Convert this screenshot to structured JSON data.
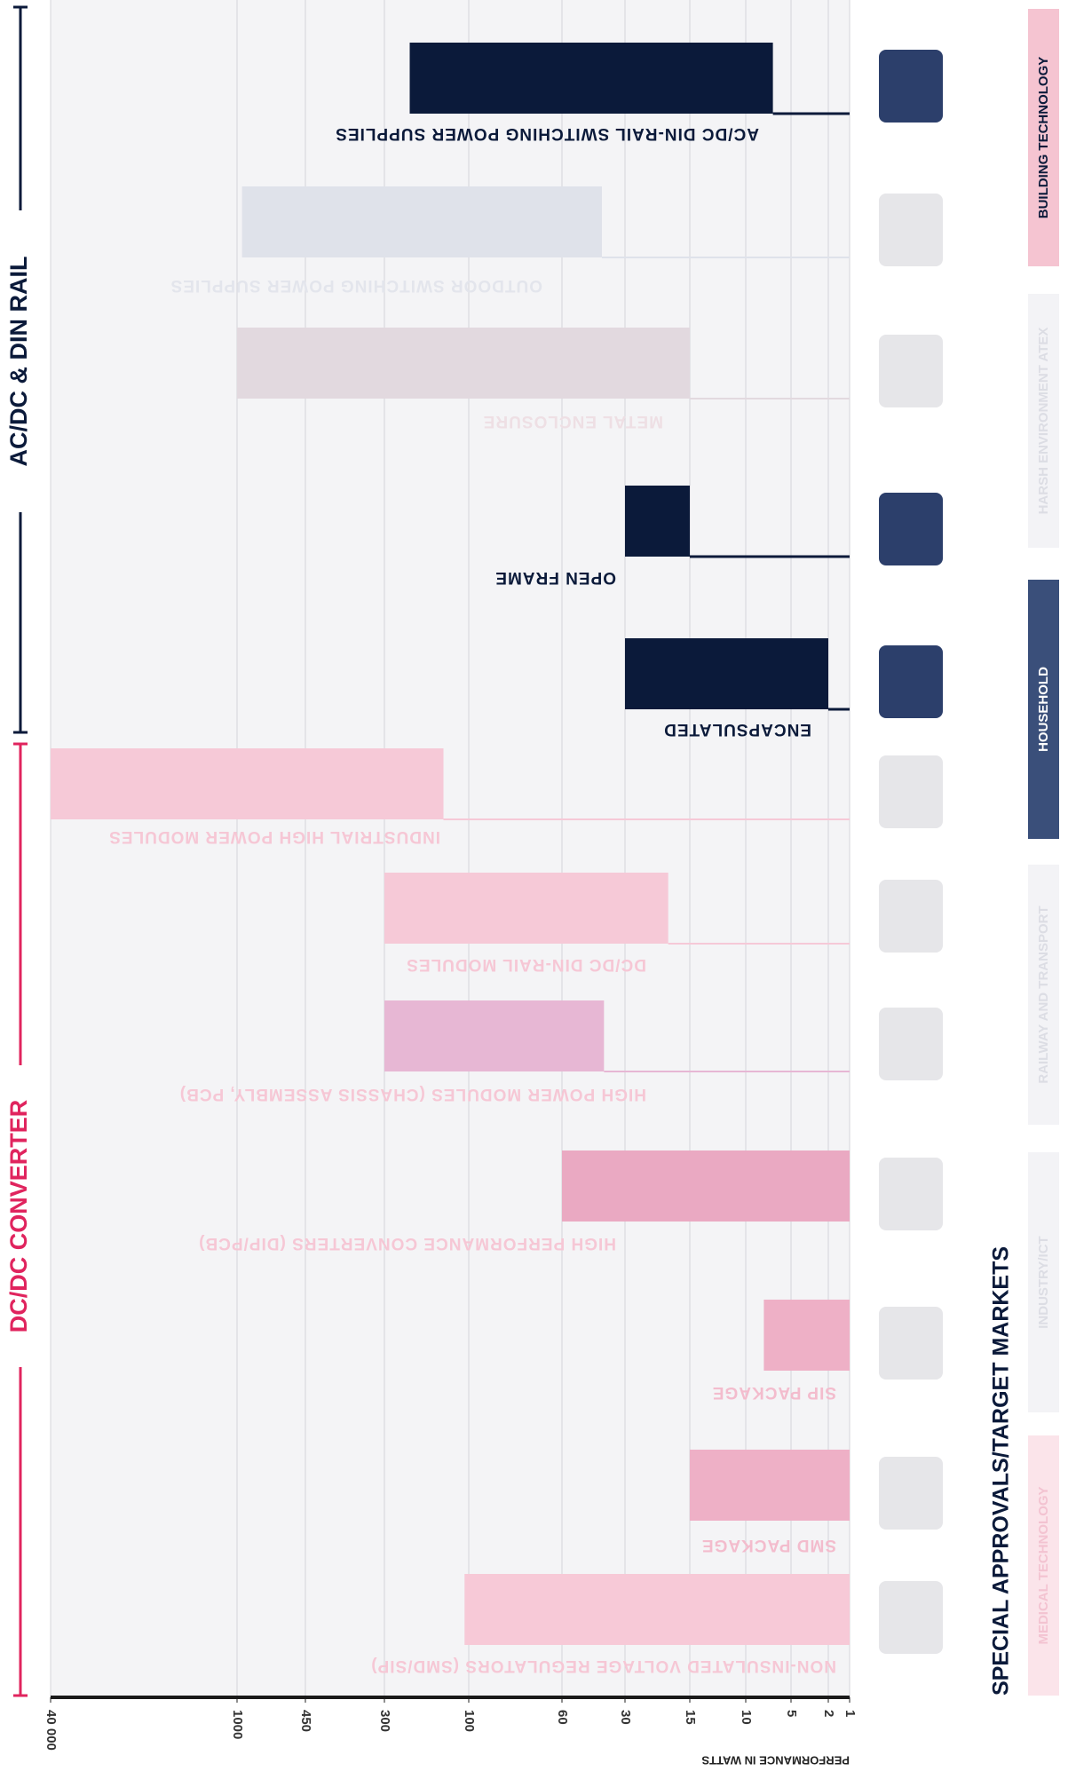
{
  "chart_data": {
    "type": "range-bar",
    "categories": [
      "AC/DC DIN-RAIL SWITCHING POWER SUPPLIES",
      "OUTDOOR SWITCHING POWER SUPPLIES",
      "METAL ENCLOSURE",
      "OPEN FRAME",
      "ENCAPSULATED",
      "INDUSTRIAL HIGH POWER MODULES",
      "DC/DC DIN-RAIL MODULES",
      "HIGH POWER MODULES (CHASSIS ASSEMBLY, PCB)",
      "HIGH PERFORMANCE CONVERTERS (DIP/PCB)",
      "SIP PACKAGE",
      "SMD PACKAGE",
      "NON-INSULATED VOLTAGE REGULATORS (SMD/SIP)"
    ],
    "values": [
      [
        240,
        7
      ],
      [
        960,
        41
      ],
      [
        1000,
        15
      ],
      [
        30,
        15
      ],
      [
        30,
        2
      ],
      [
        160,
        40000
      ],
      [
        300,
        20
      ],
      [
        300,
        40
      ],
      [
        60,
        1
      ],
      [
        8,
        1
      ],
      [
        15,
        1
      ],
      [
        110,
        1
      ]
    ],
    "highlight": [
      true,
      false,
      false,
      true,
      true,
      false,
      false,
      false,
      false,
      false,
      false,
      false
    ],
    "colors": [
      "#0b1a3a",
      "#dfe2ea",
      "#e2d9df",
      "#0b1a3a",
      "#0b1a3a",
      "#f6c9d7",
      "#f6c9d7",
      "#e7b7d4",
      "#eaa9c2",
      "#eeb0c6",
      "#eeb0c6",
      "#f7c9d7"
    ],
    "label_colors": [
      "#0b1a3a",
      "#e3e5ec",
      "#eedfe4",
      "#0b1a3a",
      "#0b1a3a",
      "#f6c7d5",
      "#f6c7d5",
      "#f6c7d5",
      "#f6c7d5",
      "#f3bccd",
      "#f3bccd",
      "#f6c7d5"
    ],
    "xlim": [
      40000,
      1
    ],
    "xticks": [
      {
        "value": 40000,
        "label": "40 000"
      },
      1000,
      450,
      300,
      100,
      60,
      30,
      15,
      10,
      5,
      2,
      1
    ],
    "grid": true,
    "xlabel": "PERFORMANCE IN WATTS",
    "sections": [
      "AC/DC & DIN RAIL",
      "DC/DC CONVERTER"
    ],
    "markets_title": "SPECIAL APPROVALS/TARGET MARKETS",
    "markets": [
      "BUILDING TECHNOLOGY",
      "HARSH ENVIRONMENT ATEX",
      "HOUSEHOLD",
      "RAILWAY AND TRANSPORT",
      "INDUSTRY/ICT",
      "MEDICAL TECHNOLOGY"
    ]
  }
}
